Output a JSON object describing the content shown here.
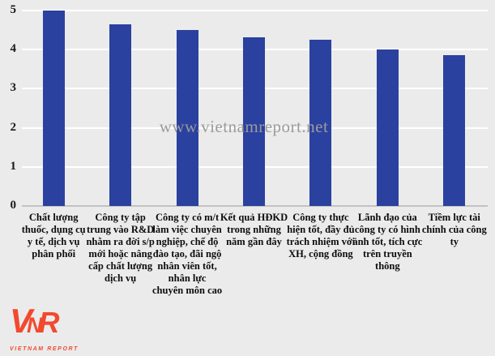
{
  "chart_data": {
    "type": "bar",
    "categories": [
      "Chất lượng thuốc, dụng cụ y tế, dịch vụ phân phối",
      "Công ty tập trung vào R&D nhằm ra đời s/p mới hoặc nâng cấp chất lượng dịch vụ",
      "Công ty có m/t làm việc chuyên nghiệp, chế độ đào tạo, đãi ngộ nhân viên tốt, nhân lực chuyên môn cao",
      "Kết quả HĐKD trong những năm gần đây",
      "Công ty thực hiện tốt, đầy đủ trách nhiệm với XH, cộng đồng",
      "Lãnh đạo của công ty có hình ảnh tốt, tích cực trên truyền thông",
      "Tiềm lực tài chính của công ty"
    ],
    "values": [
      5.0,
      4.65,
      4.5,
      4.32,
      4.25,
      4.0,
      3.85
    ],
    "title": "",
    "xlabel": "",
    "ylabel": "",
    "ylim": [
      0,
      5
    ],
    "yticks": [
      0,
      1,
      2,
      3,
      4,
      5
    ],
    "grid": "horizontal",
    "legend_position": "none",
    "bar_color": "#2B41A0",
    "background_color": "#EBEBEB",
    "gridline_color": "#FFFFFF",
    "axis_line_color": "#C2C2C2",
    "tick_label_color": "#1A1A1A",
    "category_label_color": "#0D0D0D"
  },
  "watermark": {
    "text": "www.vietnamreport.net",
    "color": "#9B9B9B"
  },
  "logo": {
    "letters": [
      "V",
      "N",
      "R"
    ],
    "caption": "VIETNAM REPORT",
    "color": "#F2492F"
  }
}
